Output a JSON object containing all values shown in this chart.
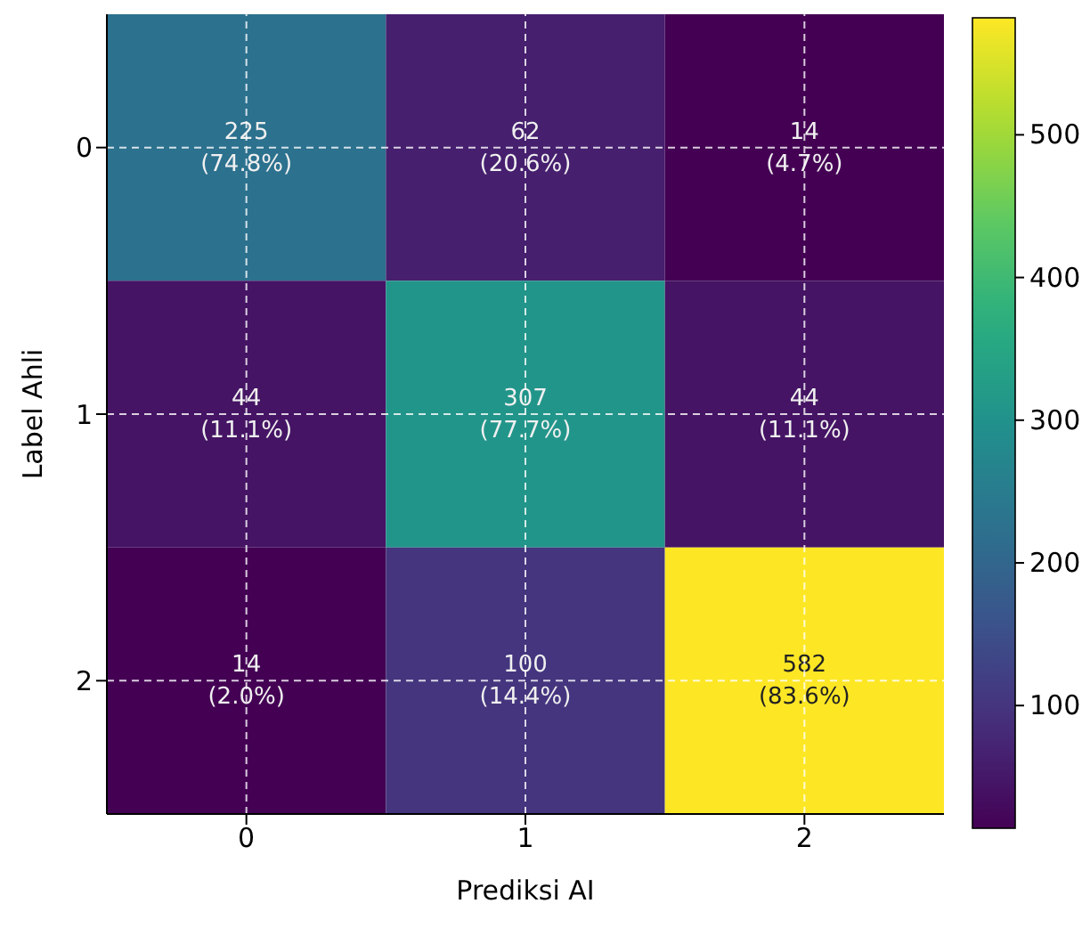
{
  "chart_data": {
    "type": "heatmap",
    "xlabel": "Prediksi AI",
    "ylabel": "Label Ahli",
    "categories": [
      "0",
      "1",
      "2"
    ],
    "y_categories": [
      "0",
      "1",
      "2"
    ],
    "cells": [
      [
        225,
        62,
        14
      ],
      [
        44,
        307,
        44
      ],
      [
        14,
        100,
        582
      ]
    ],
    "cell_labels": [
      [
        "225\n(74.8%)",
        "62\n(20.6%)",
        "14\n(4.7%)"
      ],
      [
        "44\n(11.1%)",
        "307\n(77.7%)",
        "44\n(11.1%)"
      ],
      [
        "14\n(2.0%)",
        "100\n(14.4%)",
        "582\n(83.6%)"
      ]
    ],
    "clim": [
      14,
      582
    ],
    "cticks": [
      100,
      200,
      300,
      400,
      500
    ],
    "grid": true
  }
}
